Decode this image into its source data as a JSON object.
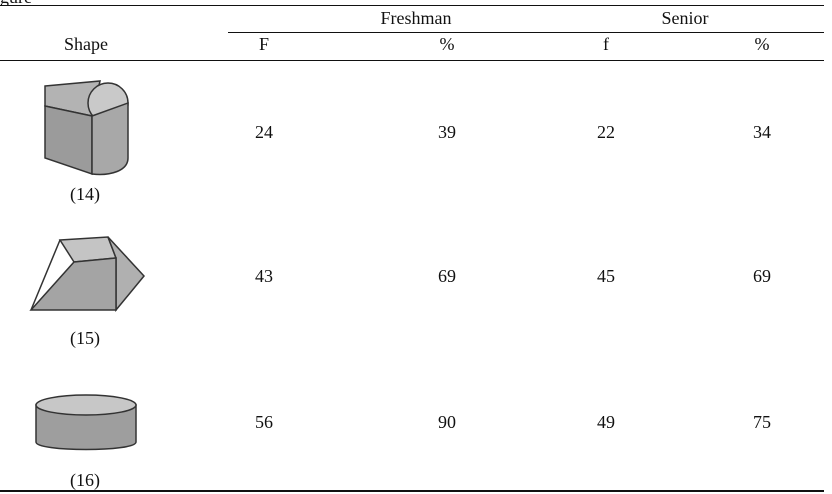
{
  "table": {
    "top_fragment": "gure",
    "groups": [
      {
        "label": "Freshman"
      },
      {
        "label": "Senior"
      }
    ],
    "columns": [
      "Shape",
      "F",
      "%",
      "f",
      "%"
    ],
    "rows": [
      {
        "shape_icon": "cylinder-cut-icon",
        "label": "(14)",
        "freshman_f": "24",
        "freshman_pct": "39",
        "senior_f": "22",
        "senior_pct": "34"
      },
      {
        "shape_icon": "trapezoid-prism-icon",
        "label": "(15)",
        "freshman_f": "43",
        "freshman_pct": "69",
        "senior_f": "45",
        "senior_pct": "69"
      },
      {
        "shape_icon": "cylinder-icon",
        "label": "(16)",
        "freshman_f": "56",
        "freshman_pct": "90",
        "senior_f": "49",
        "senior_pct": "75"
      }
    ]
  }
}
